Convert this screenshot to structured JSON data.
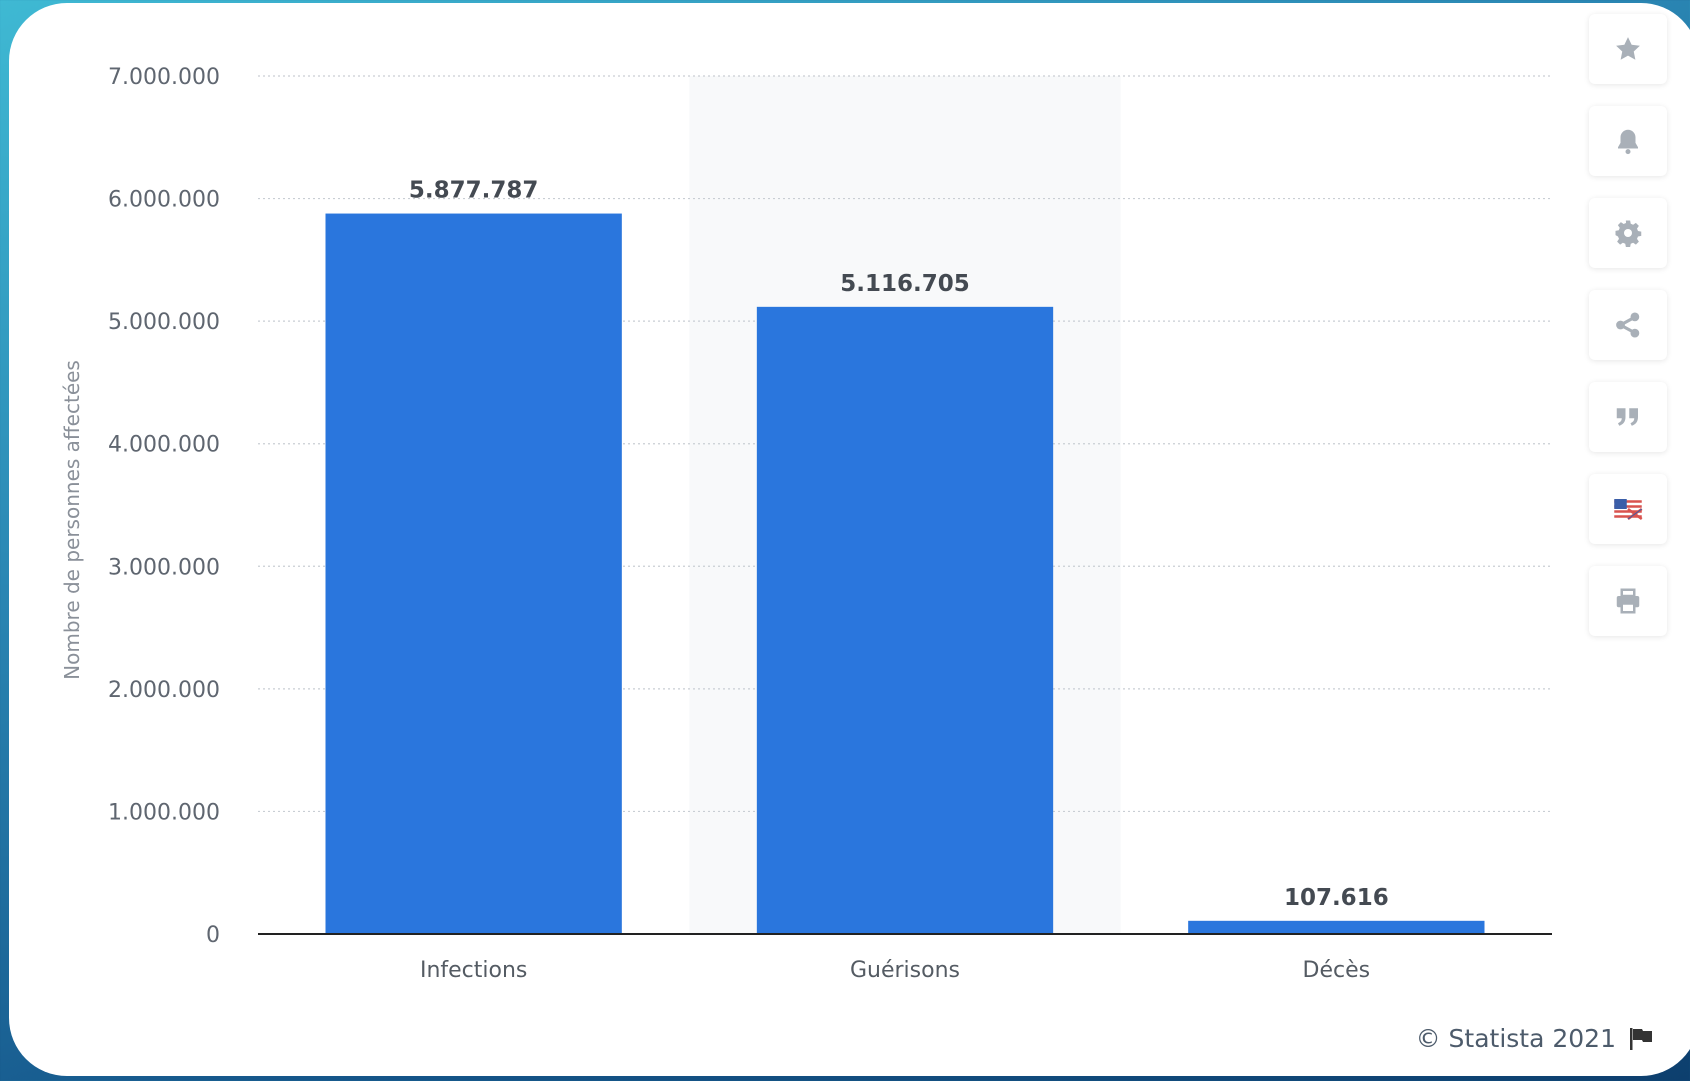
{
  "chart_data": {
    "type": "bar",
    "categories": [
      "Infections",
      "Guérisons",
      "Décès"
    ],
    "values": [
      5877787,
      5116705,
      107616
    ],
    "value_labels": [
      "5.877.787",
      "5.116.705",
      "107.616"
    ],
    "ylabel": "Nombre de personnes affectées",
    "ylim": [
      0,
      7000000
    ],
    "yticks": [
      0,
      1000000,
      2000000,
      3000000,
      4000000,
      5000000,
      6000000,
      7000000
    ],
    "ytick_labels": [
      "0",
      "1.000.000",
      "2.000.000",
      "3.000.000",
      "4.000.000",
      "5.000.000",
      "6.000.000",
      "7.000.000"
    ],
    "grid": true,
    "bar_color": "#2a76dd",
    "highlight_category": "Guérisons"
  },
  "toolbar": {
    "icons": [
      "star-icon",
      "bell-icon",
      "gear-icon",
      "share-icon",
      "quote-icon",
      "flag-us-uk-icon",
      "print-icon"
    ]
  },
  "credit": {
    "text": "© Statista 2021"
  },
  "colors": {
    "icon": "#a9b0b8",
    "grid": "#c9ced4",
    "axis": "#222222"
  }
}
